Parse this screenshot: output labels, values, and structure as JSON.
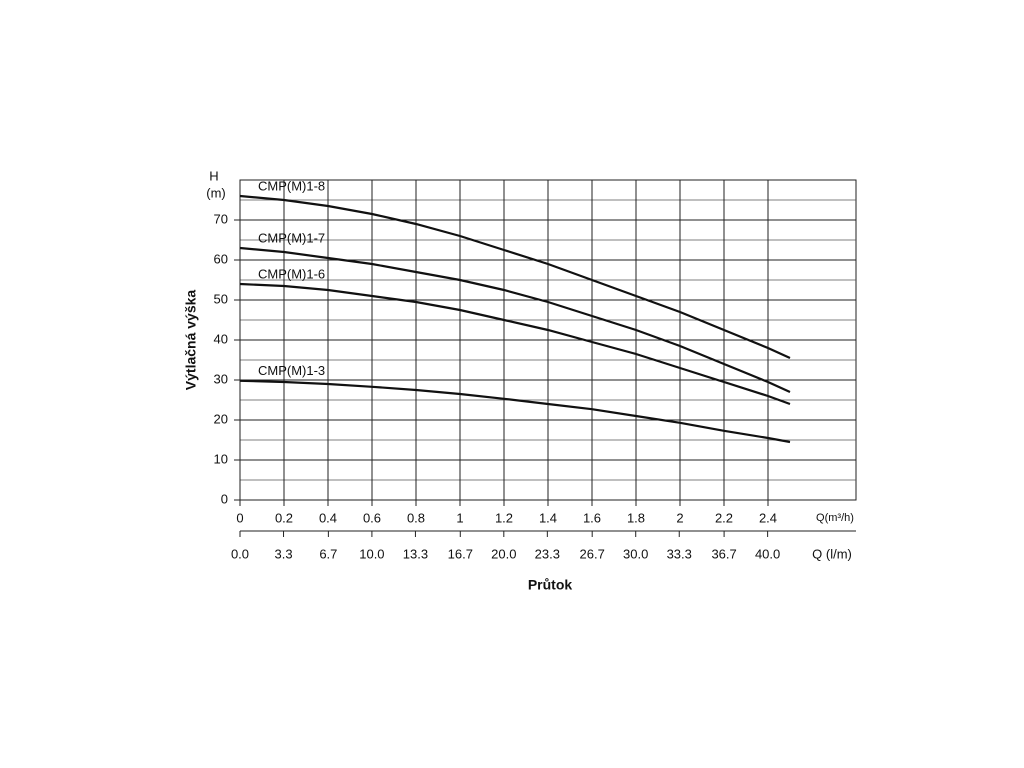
{
  "chart_data": {
    "type": "line",
    "x_axis_label": "Průtok",
    "y_axis_label": "Výtlačná výška",
    "y_unit_top": "H",
    "y_unit": "(m)",
    "x_unit": "Q(m³/h)",
    "x2_unit": "Q (l/m)",
    "x": [
      0,
      0.2,
      0.4,
      0.6,
      0.8,
      1.0,
      1.2,
      1.4,
      1.6,
      1.8,
      2.0,
      2.2,
      2.4,
      2.5
    ],
    "series": [
      {
        "name": "CMP(M)1-8",
        "color": "#111111",
        "values": [
          76,
          75,
          73.5,
          71.5,
          69,
          66,
          62.5,
          59,
          55,
          51,
          47,
          42.5,
          38,
          35.5
        ]
      },
      {
        "name": "CMP(M)1-7",
        "color": "#111111",
        "values": [
          63,
          62,
          60.5,
          59,
          57,
          55,
          52.5,
          49.5,
          46,
          42.5,
          38.5,
          34,
          29.5,
          27
        ]
      },
      {
        "name": "CMP(M)1-6",
        "color": "#111111",
        "values": [
          54,
          53.5,
          52.5,
          51,
          49.5,
          47.5,
          45,
          42.5,
          39.5,
          36.5,
          33,
          29.5,
          26,
          24
        ]
      },
      {
        "name": "CMP(M)1-3",
        "color": "#111111",
        "values": [
          29.8,
          29.5,
          29,
          28.3,
          27.5,
          26.5,
          25.3,
          24,
          22.7,
          21,
          19.3,
          17.3,
          15.5,
          14.5
        ]
      }
    ],
    "xlim": [
      0,
      2.8
    ],
    "xticks": [
      0,
      0.2,
      0.4,
      0.6,
      0.8,
      1.0,
      1.2,
      1.4,
      1.6,
      1.8,
      2.0,
      2.2,
      2.4
    ],
    "x2lim": [
      0,
      46.7
    ],
    "x2ticks": [
      {
        "value": 0,
        "label": "0.0"
      },
      3.3,
      6.7,
      {
        "value": 10,
        "label": "10.0"
      },
      13.3,
      16.7,
      {
        "value": 20,
        "label": "20.0"
      },
      23.3,
      26.7,
      {
        "value": 30,
        "label": "30.0"
      },
      33.3,
      36.7,
      {
        "value": 40,
        "label": "40.0"
      }
    ],
    "ylim": [
      0,
      80
    ],
    "yticks": [
      0,
      10,
      20,
      30,
      40,
      50,
      60,
      70
    ],
    "minor_yticks": [
      5,
      15,
      25,
      35,
      45,
      55,
      65,
      75
    ],
    "grid": true
  }
}
